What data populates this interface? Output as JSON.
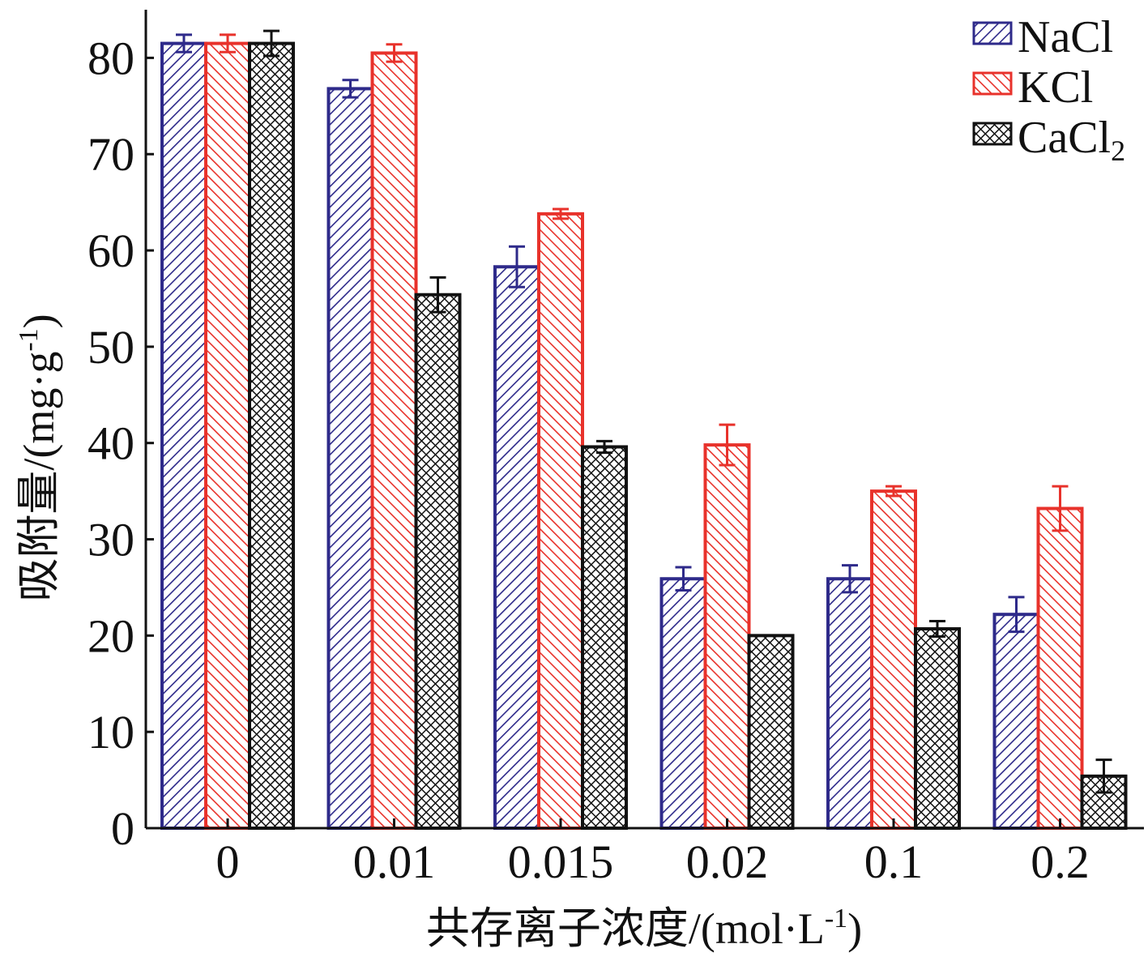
{
  "chart_data": {
    "type": "bar",
    "categories": [
      "0",
      "0.01",
      "0.015",
      "0.02",
      "0.1",
      "0.2"
    ],
    "series": [
      {
        "name": "NaCl",
        "values": [
          81.5,
          76.8,
          58.3,
          25.9,
          25.9,
          22.2
        ],
        "errors": [
          0.9,
          0.9,
          2.1,
          1.2,
          1.4,
          1.8
        ],
        "color": "#2e2a8a",
        "pattern": "diag-up"
      },
      {
        "name": "KCl",
        "values": [
          81.5,
          80.5,
          63.8,
          39.8,
          35.0,
          33.2
        ],
        "errors": [
          0.9,
          0.9,
          0.5,
          2.1,
          0.5,
          2.3
        ],
        "color": "#e8322b",
        "pattern": "diag-down"
      },
      {
        "name": "CaCl",
        "name_sub": "2",
        "values": [
          81.5,
          55.4,
          39.6,
          20.0,
          20.7,
          5.4
        ],
        "errors": [
          1.3,
          1.8,
          0.6,
          0.0,
          0.8,
          1.7
        ],
        "color": "#111111",
        "pattern": "crosshatch"
      }
    ],
    "yticks": [
      "0",
      "10",
      "20",
      "30",
      "40",
      "50",
      "60",
      "70",
      "80"
    ],
    "ylim": [
      0,
      85
    ],
    "xlabel": "共存离子浓度/(mol·L",
    "xlabel_sup": "-1",
    "xlabel_end": ")",
    "ylabel": "吸附量/(mg·g",
    "ylabel_sup": "-1",
    "ylabel_end": ")",
    "legend_position": "top-right",
    "grid": false
  }
}
